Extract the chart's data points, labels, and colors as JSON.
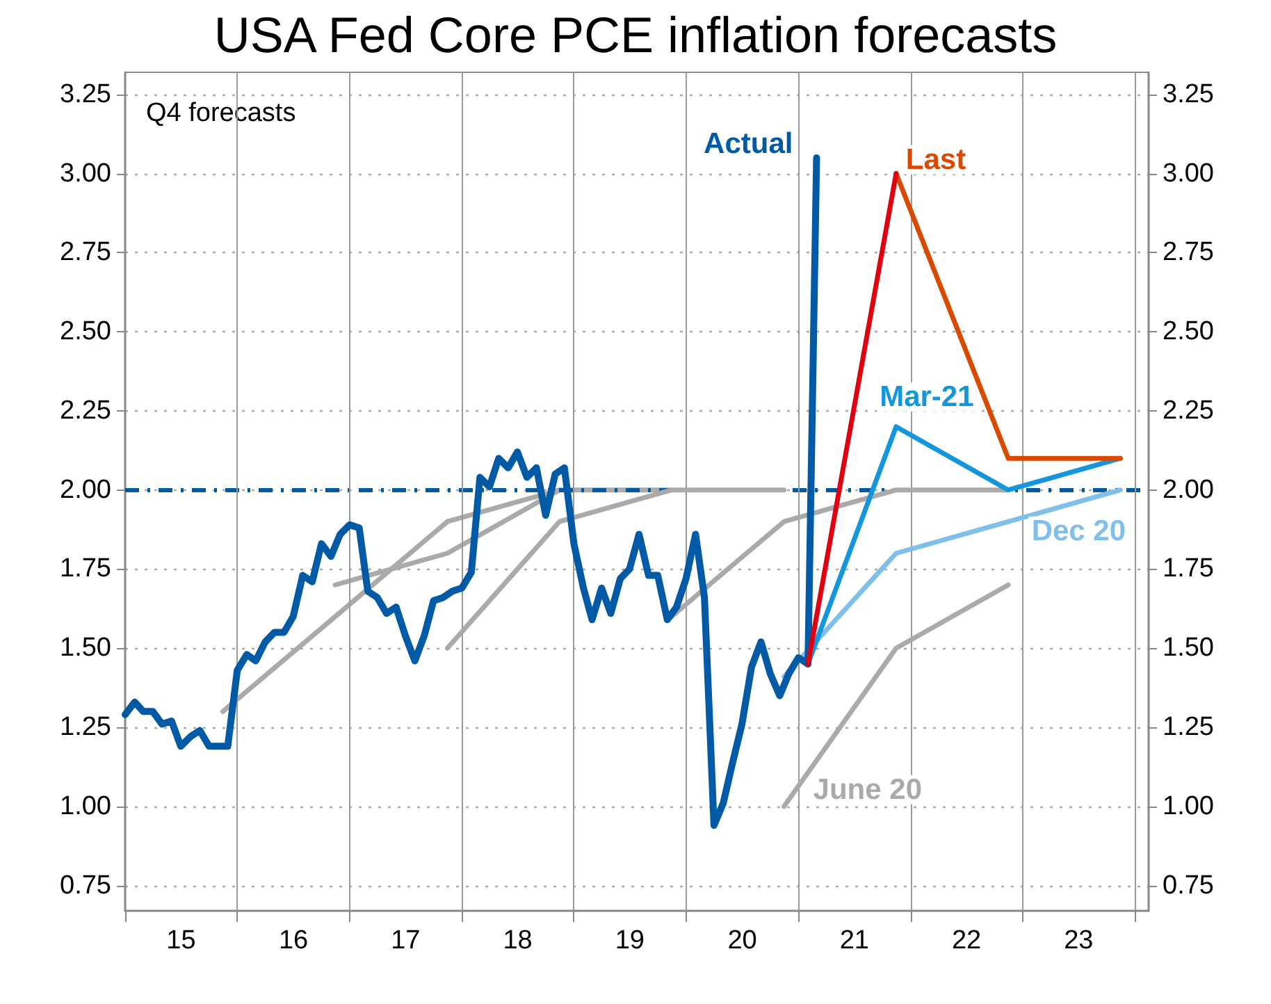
{
  "chart_data": {
    "type": "line",
    "title": "USA Fed Core PCE inflation forecasts",
    "annotations": [
      "Q4 forecasts"
    ],
    "xlim": [
      "2015-01-01",
      "2024-02-15"
    ],
    "xticks": [
      {
        "value": "2015-01-01",
        "label": null
      },
      {
        "value": "2016-01-01",
        "label": null
      },
      {
        "value": "2017-01-01",
        "label": null
      },
      {
        "value": "2018-01-01",
        "label": null
      },
      {
        "value": "2019-01-01",
        "label": null
      },
      {
        "value": "2020-01-01",
        "label": null
      },
      {
        "value": "2021-01-01",
        "label": null
      },
      {
        "value": "2022-01-01",
        "label": null
      },
      {
        "value": "2023-01-01",
        "label": null
      },
      {
        "value": "2024-01-01",
        "label": null
      },
      {
        "value": "2015-07-02",
        "label": "15"
      },
      {
        "value": "2016-07-02",
        "label": "16"
      },
      {
        "value": "2017-07-02",
        "label": "17"
      },
      {
        "value": "2018-07-02",
        "label": "18"
      },
      {
        "value": "2019-07-02",
        "label": "19"
      },
      {
        "value": "2020-07-02",
        "label": "20"
      },
      {
        "value": "2021-07-02",
        "label": "21"
      },
      {
        "value": "2022-07-02",
        "label": "22"
      },
      {
        "value": "2023-07-02",
        "label": "23"
      }
    ],
    "ylim": [
      0.67,
      3.32
    ],
    "yticks": [
      {
        "value": 0.75,
        "label": "0.75"
      },
      {
        "value": 1,
        "label": "1.00"
      },
      {
        "value": 1.25,
        "label": "1.25"
      },
      {
        "value": 1.5,
        "label": "1.50"
      },
      {
        "value": 1.75,
        "label": "1.75"
      },
      {
        "value": 2,
        "label": "2.00"
      },
      {
        "value": 2.25,
        "label": "2.25"
      },
      {
        "value": 2.5,
        "label": "2.50"
      },
      {
        "value": 2.75,
        "label": "2.75"
      },
      {
        "value": 3,
        "label": "3.00"
      },
      {
        "value": 3.25,
        "label": "3.25"
      }
    ],
    "y2lim": [
      0.67,
      3.32
    ],
    "y2ticks": [
      {
        "value": 0.75,
        "label": "0.75"
      },
      {
        "value": 1,
        "label": "1.00"
      },
      {
        "value": 1.25,
        "label": "1.25"
      },
      {
        "value": 1.5,
        "label": "1.50"
      },
      {
        "value": 1.75,
        "label": "1.75"
      },
      {
        "value": 2,
        "label": "2.00"
      },
      {
        "value": 2.25,
        "label": "2.25"
      },
      {
        "value": 2.5,
        "label": "2.50"
      },
      {
        "value": 2.75,
        "label": "2.75"
      },
      {
        "value": 3,
        "label": "3.00"
      },
      {
        "value": 3.25,
        "label": "3.25"
      }
    ],
    "grid": true,
    "legend": false,
    "ref_lines": [
      {
        "axis": "y",
        "value": 2,
        "color": "#005aa5",
        "line_style": "dashed"
      }
    ],
    "series": [
      {
        "color": "#aaaaaa",
        "x": [
          "2015-11-15",
          "2016-11-15",
          "2017-11-15",
          "2018-11-15"
        ],
        "values": [
          1.3,
          1.6,
          1.9,
          2.0
        ]
      },
      {
        "color": "#aaaaaa",
        "x": [
          "2016-11-15",
          "2017-11-15",
          "2018-11-15",
          "2019-11-15"
        ],
        "values": [
          1.7,
          1.8,
          2.0,
          2.0
        ]
      },
      {
        "color": "#aaaaaa",
        "x": [
          "2017-11-15",
          "2018-11-15",
          "2019-11-15",
          "2020-11-15"
        ],
        "values": [
          1.5,
          1.9,
          2.0,
          2.0
        ]
      },
      {
        "color": "#aaaaaa",
        "x": [
          "2019-11-15",
          "2020-11-15",
          "2021-11-15",
          "2022-11-15"
        ],
        "values": [
          1.6,
          1.9,
          2.0,
          2.0
        ]
      },
      {
        "name": "June 20",
        "color": "#aaaaaa",
        "x": [
          "2020-11-15",
          "2021-11-15",
          "2022-11-15"
        ],
        "values": [
          1.0,
          1.5,
          1.7
        ]
      },
      {
        "name": "Dec 20",
        "color": "#7fbfea",
        "x": [
          "2020-11-15",
          "2021-11-15",
          "2023-11-15"
        ],
        "values": [
          1.41,
          1.8,
          2.0
        ]
      },
      {
        "name": "Mar-21",
        "color": "#1496dc",
        "x": [
          "2021-02-01",
          "2021-11-15",
          "2022-11-15",
          "2023-11-15"
        ],
        "values": [
          1.45,
          2.2,
          2.0,
          2.1
        ]
      },
      {
        "color": "#e00010",
        "x": [
          "2021-02-01",
          "2021-11-15"
        ],
        "values": [
          1.45,
          3.0
        ]
      },
      {
        "name": "Last",
        "color": "#d94a00",
        "x": [
          "2021-11-15",
          "2022-11-15",
          "2023-11-15"
        ],
        "values": [
          3.0,
          2.1,
          2.1
        ]
      },
      {
        "name": "Actual",
        "color": "#005aa5",
        "x": [
          "2015-01",
          "2015-02",
          "2015-03",
          "2015-04",
          "2015-05",
          "2015-06",
          "2015-07",
          "2015-08",
          "2015-09",
          "2015-10",
          "2015-11",
          "2015-12",
          "2016-01",
          "2016-02",
          "2016-03",
          "2016-04",
          "2016-05",
          "2016-06",
          "2016-07",
          "2016-08",
          "2016-09",
          "2016-10",
          "2016-11",
          "2016-12",
          "2017-01",
          "2017-02",
          "2017-03",
          "2017-04",
          "2017-05",
          "2017-06",
          "2017-07",
          "2017-08",
          "2017-09",
          "2017-10",
          "2017-11",
          "2017-12",
          "2018-01",
          "2018-02",
          "2018-03",
          "2018-04",
          "2018-05",
          "2018-06",
          "2018-07",
          "2018-08",
          "2018-09",
          "2018-10",
          "2018-11",
          "2018-12",
          "2019-01",
          "2019-02",
          "2019-03",
          "2019-04",
          "2019-05",
          "2019-06",
          "2019-07",
          "2019-08",
          "2019-09",
          "2019-10",
          "2019-11",
          "2019-12",
          "2020-01",
          "2020-02",
          "2020-03",
          "2020-04",
          "2020-05",
          "2020-06",
          "2020-07",
          "2020-08",
          "2020-09",
          "2020-10",
          "2020-11",
          "2020-12",
          "2021-01",
          "2021-02",
          "2021-03"
        ],
        "values": [
          1.29,
          1.33,
          1.3,
          1.3,
          1.26,
          1.27,
          1.19,
          1.22,
          1.24,
          1.19,
          1.19,
          1.19,
          1.43,
          1.48,
          1.46,
          1.52,
          1.55,
          1.55,
          1.6,
          1.73,
          1.71,
          1.83,
          1.79,
          1.86,
          1.89,
          1.88,
          1.68,
          1.66,
          1.61,
          1.63,
          1.54,
          1.46,
          1.54,
          1.65,
          1.66,
          1.68,
          1.69,
          1.74,
          2.04,
          2.01,
          2.1,
          2.07,
          2.12,
          2.04,
          2.07,
          1.92,
          2.05,
          2.07,
          1.83,
          1.69,
          1.59,
          1.69,
          1.61,
          1.72,
          1.75,
          1.86,
          1.73,
          1.73,
          1.59,
          1.63,
          1.72,
          1.86,
          1.66,
          0.94,
          1.01,
          1.14,
          1.26,
          1.44,
          1.52,
          1.42,
          1.35,
          1.42,
          1.47,
          1.45,
          3.05
        ]
      }
    ]
  }
}
